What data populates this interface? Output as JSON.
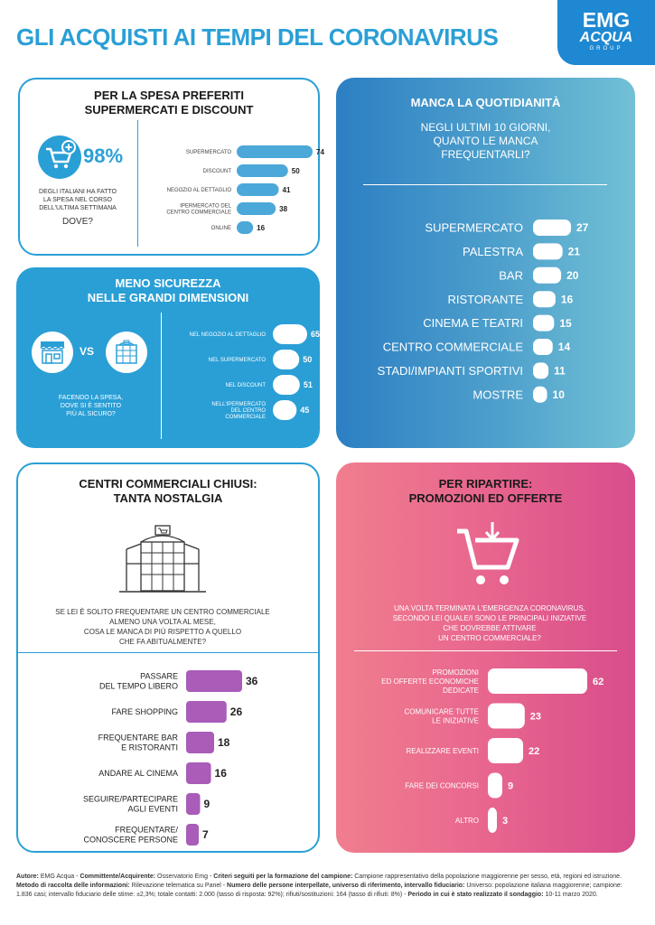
{
  "header": {
    "title": "GLI ACQUISTI AI TEMPI DEL CORONAVIRUS"
  },
  "logo": {
    "line1": "EMG",
    "line2": "ACQUA",
    "line3": "GROUP"
  },
  "spesa": {
    "title1": "PER LA SPESA PREFERITI",
    "title2": "SUPERMERCATI E DISCOUNT",
    "stat": "98%",
    "desc1": "DEGLI ITALIANI HA FATTO",
    "desc2": "LA SPESA NEL CORSO",
    "desc3": "DELL'ULTIMA SETTIMANA",
    "where": "DOVE?"
  },
  "sicurezza": {
    "title1": "MENO SICUREZZA",
    "title2": "NELLE GRANDI DIMENSIONI",
    "vs": "VS",
    "q1": "FACENDO LA SPESA,",
    "q2": "DOVE SI È SENTITO",
    "q3": "PIÙ AL SICURO?"
  },
  "quotidianita": {
    "title": "MANCA LA QUOTIDIANITÀ",
    "q1": "NEGLI ULTIMI 10 GIORNI,",
    "q2": "QUANTO LE MANCA",
    "q3": "FREQUENTARLI?"
  },
  "centri": {
    "title1": "CENTRI COMMERCIALI CHIUSI:",
    "title2": "TANTA NOSTALGIA",
    "q1": "SE LEI È SOLITO FREQUENTARE  UN CENTRO COMMERCIALE",
    "q2": "ALMENO UNA VOLTA AL MESE,",
    "q3": "COSA LE MANCA DI PIÙ RISPETTO A QUELLO",
    "q4": "CHE FA ABITUALMENTE?"
  },
  "ripartire": {
    "title1": "PER RIPARTIRE:",
    "title2": "PROMOZIONI ED OFFERTE",
    "q1": "UNA VOLTA TERMINATA L'EMERGENZA CORONAVIRUS,",
    "q2": "SECONDO LEI QUALE/I SONO LE PRINCIPALI INIZIATIVE",
    "q3": "CHE DOVREBBE ATTIVARE",
    "q4": "UN CENTRO COMMERCIALE?"
  },
  "footer": {
    "autore_k": "Autore:",
    "autore_v": "EMG Acqua",
    "committente_k": "Committente/Acquirente:",
    "committente_v": "Osservatorio Emg",
    "criteri_k": "Criteri seguiti per la formazione del campione:",
    "criteri_v": "Campione rappresentativo della popolazione maggiorenne per sesso, età, regioni ed istruzione.",
    "metodo_k": "Metodo di raccolta delle informazioni:",
    "metodo_v": "Rilevazione telematica su Panel",
    "numero_k": "Numero delle persone interpellate, universo di riferimento, intervallo fiduciario:",
    "numero_v": "Universo: popolazione italiana maggiorenne; campione:",
    "line3": "1.836 casi; intervallo fiduciario delle stime: ±2,3%; totale contatti: 2.000 (tasso di risposta: 92%); rifiuti/sostituzioni: 164 (tasso di rifiuti: 8%)",
    "periodo_k": "Periodo in cui è stato realizzato il sondaggio:",
    "periodo_v": "10-11 marzo 2020."
  },
  "chart_data": [
    {
      "type": "bar",
      "id": "spesa",
      "title": "DOVE?",
      "categories": [
        "SUPERMERCATO",
        "DISCOUNT",
        "NEGOZIO AL DETTAGLIO",
        "IPERMERCATO DEL CENTRO COMMERCIALE",
        "ONLINE"
      ],
      "label_lines": [
        [
          "SUPERMERCATO"
        ],
        [
          "DISCOUNT"
        ],
        [
          "NEGOZIO AL DETTAGLIO"
        ],
        [
          "IPERMERCATO DEL",
          "CENTRO COMMERCIALE"
        ],
        [
          "ONLINE"
        ]
      ],
      "values": [
        74,
        50,
        41,
        38,
        16
      ],
      "color": "#4ba8d8"
    },
    {
      "type": "bar",
      "id": "sicurezza",
      "categories": [
        "NEL NEGOZIO AL DETTAGLIO",
        "NEL SUPERMERCATO",
        "NEL DISCOUNT",
        "NELL'IPERMERCATO DEL CENTRO COMMERCIALE"
      ],
      "label_lines": [
        [
          "NEL NEGOZIO AL DETTAGLIO"
        ],
        [
          "NEL SUPERMERCATO"
        ],
        [
          "NEL DISCOUNT"
        ],
        [
          "NELL'IPERMERCATO",
          "DEL CENTRO",
          "COMMERCIALE"
        ]
      ],
      "values": [
        65,
        50,
        51,
        45
      ],
      "color": "#ffffff"
    },
    {
      "type": "bar",
      "id": "quotidianita",
      "categories": [
        "SUPERMERCATO",
        "PALESTRA",
        "BAR",
        "RISTORANTE",
        "CINEMA E TEATRI",
        "CENTRO COMMERCIALE",
        "STADI/IMPIANTI SPORTIVI",
        "MOSTRE"
      ],
      "values": [
        27,
        21,
        20,
        16,
        15,
        14,
        11,
        10
      ],
      "color": "#ffffff"
    },
    {
      "type": "bar",
      "id": "centri",
      "categories": [
        "PASSARE DEL TEMPO LIBERO",
        "FARE SHOPPING",
        "FREQUENTARE BAR E RISTORANTI",
        "ANDARE AL CINEMA",
        "SEGUIRE/PARTECIPARE AGLI EVENTI",
        "FREQUENTARE/ CONOSCERE PERSONE"
      ],
      "label_lines": [
        [
          "PASSARE",
          "DEL TEMPO LIBERO"
        ],
        [
          "FARE SHOPPING"
        ],
        [
          "FREQUENTARE BAR",
          "E RISTORANTI"
        ],
        [
          "ANDARE AL CINEMA"
        ],
        [
          "SEGUIRE/PARTECIPARE",
          "AGLI EVENTI"
        ],
        [
          "FREQUENTARE/",
          "CONOSCERE PERSONE"
        ]
      ],
      "values": [
        36,
        26,
        18,
        16,
        9,
        7
      ],
      "color": "#a95cb8"
    },
    {
      "type": "bar",
      "id": "ripartire",
      "categories": [
        "PROMOZIONI ED OFFERTE ECONOMICHE DEDICATE",
        "COMUNICARE TUTTE LE INIZIATIVE",
        "REALIZZARE EVENTI",
        "FARE DEI CONCORSI",
        "ALTRO"
      ],
      "label_lines": [
        [
          "PROMOZIONI",
          "ED OFFERTE ECONOMICHE",
          "DEDICATE"
        ],
        [
          "COMUNICARE TUTTE",
          "LE INIZIATIVE"
        ],
        [
          "REALIZZARE EVENTI"
        ],
        [
          "FARE DEI CONCORSI"
        ],
        [
          "ALTRO"
        ]
      ],
      "values": [
        62,
        23,
        22,
        9,
        3
      ],
      "color": "#ffffff"
    }
  ]
}
